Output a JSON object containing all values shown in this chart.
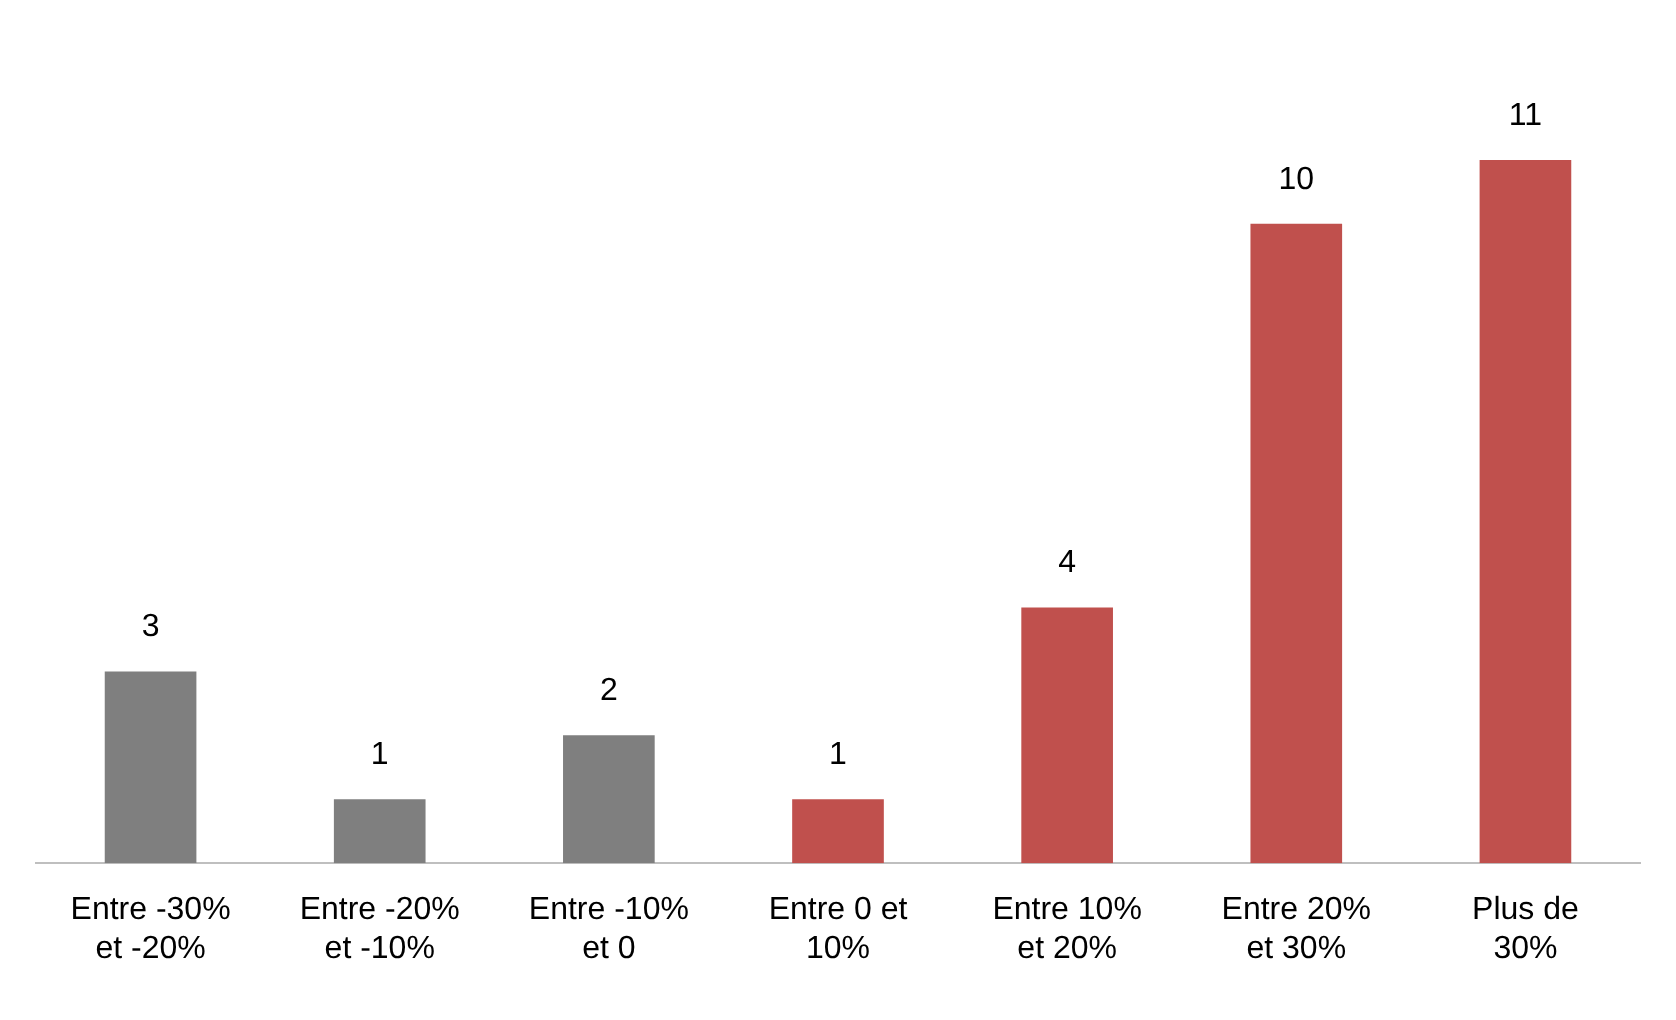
{
  "chart_data": {
    "type": "bar",
    "categories": [
      "Entre -30% et -20%",
      "Entre -20% et -10%",
      "Entre -10% et 0",
      "Entre 0 et 10%",
      "Entre 10% et 20%",
      "Entre 20% et 30%",
      "Plus de 30%"
    ],
    "values": [
      3,
      1,
      2,
      1,
      4,
      10,
      11
    ],
    "colors": [
      "#7f7f7f",
      "#7f7f7f",
      "#7f7f7f",
      "#c0504d",
      "#c0504d",
      "#c0504d",
      "#c0504d"
    ],
    "data_labels": true,
    "grid": false,
    "legend": false
  }
}
